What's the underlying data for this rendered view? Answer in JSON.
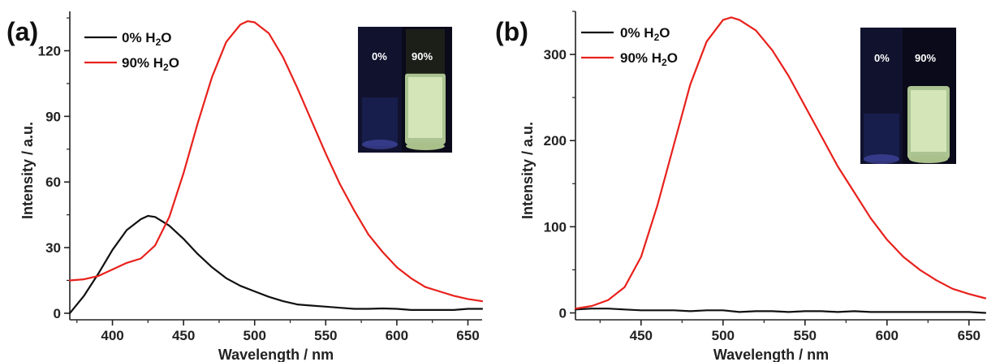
{
  "chart_data": [
    {
      "panel_label": "(a)",
      "type": "line",
      "xlabel": "Wavelength / nm",
      "ylabel": "Intensity / a.u.",
      "xlim": [
        370,
        660
      ],
      "ylim": [
        -3,
        138
      ],
      "xticks": [
        400,
        450,
        500,
        550,
        600,
        650
      ],
      "yticks": [
        0,
        30,
        60,
        90,
        120
      ],
      "legend_position": "top-left",
      "series": [
        {
          "name": "0% H2O",
          "color": "#111111",
          "x": [
            370,
            380,
            390,
            400,
            410,
            420,
            425,
            430,
            440,
            450,
            460,
            470,
            480,
            490,
            500,
            510,
            520,
            530,
            540,
            550,
            560,
            570,
            580,
            590,
            600,
            610,
            620,
            630,
            640,
            650,
            660
          ],
          "y": [
            0,
            8,
            18,
            29,
            38,
            43,
            44.5,
            44,
            40,
            34,
            27,
            21,
            16,
            12.5,
            10,
            7.5,
            5.5,
            4,
            3.5,
            3,
            2.5,
            2,
            2,
            2.2,
            2,
            1.5,
            1.5,
            1.5,
            1.5,
            2,
            2
          ]
        },
        {
          "name": "90% H2O",
          "color": "#e8211c",
          "x": [
            370,
            380,
            390,
            400,
            410,
            420,
            430,
            440,
            450,
            460,
            470,
            480,
            490,
            495,
            500,
            510,
            520,
            530,
            540,
            550,
            560,
            570,
            580,
            590,
            600,
            610,
            620,
            630,
            640,
            650,
            660
          ],
          "y": [
            15,
            15.5,
            17,
            20,
            23,
            25,
            31,
            44,
            64,
            87,
            108,
            124,
            132,
            133.5,
            133,
            128,
            117,
            103,
            88,
            73,
            59,
            47,
            36,
            28,
            21,
            16,
            12,
            10,
            8,
            6.5,
            5.5
          ]
        }
      ],
      "inset_labels": [
        "0%",
        "90%"
      ]
    },
    {
      "panel_label": "(b)",
      "type": "line",
      "xlabel": "Wavelength / nm",
      "ylabel": "Intensity / a.u.",
      "xlim": [
        410,
        660
      ],
      "ylim": [
        -8,
        350
      ],
      "xticks": [
        450,
        500,
        550,
        600,
        650
      ],
      "yticks": [
        0,
        100,
        200,
        300
      ],
      "legend_position": "top-left",
      "series": [
        {
          "name": "0% H2O",
          "color": "#111111",
          "x": [
            410,
            420,
            430,
            440,
            450,
            460,
            470,
            480,
            490,
            500,
            510,
            520,
            530,
            540,
            550,
            560,
            570,
            580,
            590,
            600,
            610,
            620,
            630,
            640,
            650,
            660
          ],
          "y": [
            4,
            5,
            5,
            4,
            3,
            3,
            3,
            2,
            3,
            3,
            1,
            2,
            2,
            1,
            2,
            2,
            1,
            2,
            1,
            1,
            1,
            1,
            1,
            1,
            1,
            0
          ]
        },
        {
          "name": "90% H2O",
          "color": "#e8211c",
          "x": [
            410,
            420,
            430,
            440,
            450,
            460,
            470,
            480,
            490,
            500,
            505,
            510,
            520,
            530,
            540,
            550,
            560,
            570,
            580,
            590,
            600,
            610,
            620,
            630,
            640,
            650,
            660
          ],
          "y": [
            5,
            8,
            15,
            30,
            65,
            125,
            195,
            265,
            315,
            340,
            343,
            340,
            328,
            305,
            275,
            240,
            205,
            170,
            140,
            110,
            85,
            65,
            50,
            38,
            28,
            22,
            17
          ]
        }
      ],
      "inset_labels": [
        "0%",
        "90%"
      ]
    }
  ]
}
